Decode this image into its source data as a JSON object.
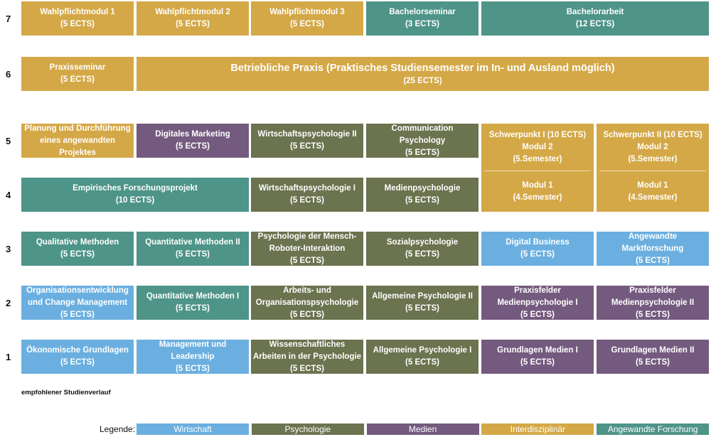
{
  "colors": {
    "wirtschaft": "#6AAFDF",
    "psychologie": "#6B734F",
    "medien": "#745A7E",
    "interdisziplinaer": "#D4A847",
    "forschung": "#4E9488"
  },
  "semesters": [
    "7",
    "6",
    "5",
    "4",
    "3",
    "2",
    "1"
  ],
  "cells": [
    {
      "lines": [
        "Wahlpflichtmodul 1",
        "(5 ECTS)"
      ],
      "cat": "interdisziplinaer"
    },
    {
      "lines": [
        "Wahlpflichtmodul 2",
        "(5 ECTS)"
      ],
      "cat": "interdisziplinaer"
    },
    {
      "lines": [
        "Wahlpflichtmodul 3",
        "(5 ECTS)"
      ],
      "cat": "interdisziplinaer"
    },
    {
      "lines": [
        "Bachelorseminar",
        "(3 ECTS)"
      ],
      "cat": "forschung"
    },
    {
      "lines": [
        "Bachelorarbeit",
        "(12 ECTS)"
      ],
      "cat": "forschung"
    },
    {
      "lines": [
        "Praxisseminar",
        "(5 ECTS)"
      ],
      "cat": "interdisziplinaer"
    },
    {
      "lines": [
        "Betriebliche Praxis (Praktisches Studiensemester im In- und Ausland möglich)",
        "(25 ECTS)"
      ],
      "cat": "interdisziplinaer"
    },
    {
      "lines": [
        "Planung und Durchführung",
        "eines angewandten",
        "Projektes"
      ],
      "cat": "interdisziplinaer"
    },
    {
      "lines": [
        "Digitales Marketing",
        "(5 ECTS)"
      ],
      "cat": "medien"
    },
    {
      "lines": [
        "Wirtschaftspsychologie II",
        "(5 ECTS)"
      ],
      "cat": "psychologie"
    },
    {
      "lines": [
        "Communication Psychology",
        "(5 ECTS)"
      ],
      "cat": "psychologie"
    },
    {
      "lines": [
        "Empirisches Forschungsprojekt",
        "(10 ECTS)"
      ],
      "cat": "forschung"
    },
    {
      "lines": [
        "Wirtschaftspsychologie I",
        "(5 ECTS)"
      ],
      "cat": "psychologie"
    },
    {
      "lines": [
        "Medienpsychologie",
        "(5 ECTS)"
      ],
      "cat": "psychologie"
    },
    {
      "lines": [
        "Qualitative Methoden",
        "(5 ECTS)"
      ],
      "cat": "forschung"
    },
    {
      "lines": [
        "Quantitative Methoden II",
        "(5 ECTS)"
      ],
      "cat": "forschung"
    },
    {
      "lines": [
        "Psychologie der Mensch-",
        "Roboter-Interaktion",
        "(5 ECTS)"
      ],
      "cat": "psychologie"
    },
    {
      "lines": [
        "Sozialpsychologie",
        "(5 ECTS)"
      ],
      "cat": "psychologie"
    },
    {
      "lines": [
        "Digital Business",
        "(5 ECTS)"
      ],
      "cat": "wirtschaft"
    },
    {
      "lines": [
        "Angewandte Marktforschung",
        "(5 ECTS)"
      ],
      "cat": "wirtschaft"
    },
    {
      "lines": [
        "Organisationsentwicklung",
        "und Change Management",
        "(5 ECTS)"
      ],
      "cat": "wirtschaft"
    },
    {
      "lines": [
        "Quantitative Methoden I",
        "(5 ECTS)"
      ],
      "cat": "forschung"
    },
    {
      "lines": [
        "Arbeits- und",
        "Organisationspsychologie",
        "(5 ECTS)"
      ],
      "cat": "psychologie"
    },
    {
      "lines": [
        "Allgemeine Psychologie II",
        "(5 ECTS)"
      ],
      "cat": "psychologie"
    },
    {
      "lines": [
        "Praxisfelder",
        "Medienpsychologie I",
        "(5 ECTS)"
      ],
      "cat": "medien"
    },
    {
      "lines": [
        "Praxisfelder",
        "Medienpsychologie II",
        "(5 ECTS)"
      ],
      "cat": "medien"
    },
    {
      "lines": [
        "Ökonomische Grundlagen",
        "(5 ECTS)"
      ],
      "cat": "wirtschaft"
    },
    {
      "lines": [
        "Management und Leadership",
        "(5 ECTS)"
      ],
      "cat": "wirtschaft"
    },
    {
      "lines": [
        "Wissenschaftliches",
        "Arbeiten in der Psychologie",
        "(5 ECTS)"
      ],
      "cat": "psychologie"
    },
    {
      "lines": [
        "Allgemeine Psychologie I",
        "(5 ECTS)"
      ],
      "cat": "psychologie"
    },
    {
      "lines": [
        "Grundlagen Medien I",
        "(5 ECTS)"
      ],
      "cat": "medien"
    },
    {
      "lines": [
        "Grundlagen Medien II",
        "(5 ECTS)"
      ],
      "cat": "medien"
    }
  ],
  "schwerpunkte": [
    {
      "top": [
        "Schwerpunkt I (10 ECTS)",
        "Modul 2",
        "(5.Semester)"
      ],
      "bottom": [
        "Modul 1",
        "(4.Semester)"
      ],
      "cat": "interdisziplinaer"
    },
    {
      "top": [
        "Schwerpunkt II (10 ECTS)",
        "Modul 2",
        "(5.Semester)"
      ],
      "bottom": [
        "Modul 1",
        "(4.Semester)"
      ],
      "cat": "interdisziplinaer"
    }
  ],
  "note": "empfohlener Studienverlauf",
  "legend": {
    "label": "Legende:",
    "items": [
      {
        "label": "Wirtschaft",
        "cat": "wirtschaft"
      },
      {
        "label": "Psychologie",
        "cat": "psychologie"
      },
      {
        "label": "Medien",
        "cat": "medien"
      },
      {
        "label": "Interdisziplinär",
        "cat": "interdisziplinaer"
      },
      {
        "label": "Angewandte Forschung",
        "cat": "forschung"
      }
    ]
  }
}
